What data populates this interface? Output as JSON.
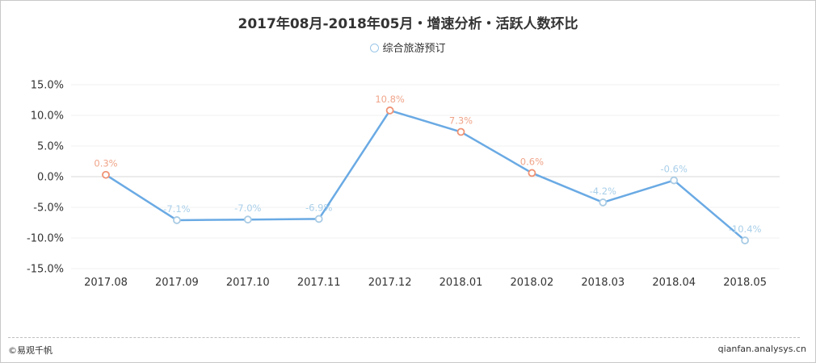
{
  "chart_data": {
    "type": "line",
    "title": "2017年08月-2018年05月・增速分析・活跃人数环比",
    "categories": [
      "2017.08",
      "2017.09",
      "2017.10",
      "2017.11",
      "2017.12",
      "2018.01",
      "2018.02",
      "2018.03",
      "2018.04",
      "2018.05"
    ],
    "series": [
      {
        "name": "综合旅游预订",
        "values": [
          0.3,
          -7.1,
          -7.0,
          -6.9,
          10.8,
          7.3,
          0.6,
          -4.2,
          -0.6,
          -10.4
        ],
        "labels": [
          "0.3%",
          "-7.1%",
          "-7.0%",
          "-6.9%",
          "10.8%",
          "7.3%",
          "0.6%",
          "-4.2%",
          "-0.6%",
          "-10.4%"
        ]
      }
    ],
    "yticks": [
      "15.0%",
      "10.0%",
      "5.0%",
      "0.0%",
      "-5.0%",
      "-10.0%",
      "-15.0%"
    ],
    "ylim": [
      -15,
      15
    ],
    "grid": true,
    "legend_position": "top-center",
    "colors": {
      "line": "#6aaae4",
      "positive_label": "#f0a58a",
      "negative_label": "#a9cfe9",
      "positive_marker": "#ef9274",
      "negative_marker": "#a9cbe4"
    }
  },
  "footer": {
    "left": "©易观千帆",
    "right": "qianfan.analysys.cn"
  }
}
